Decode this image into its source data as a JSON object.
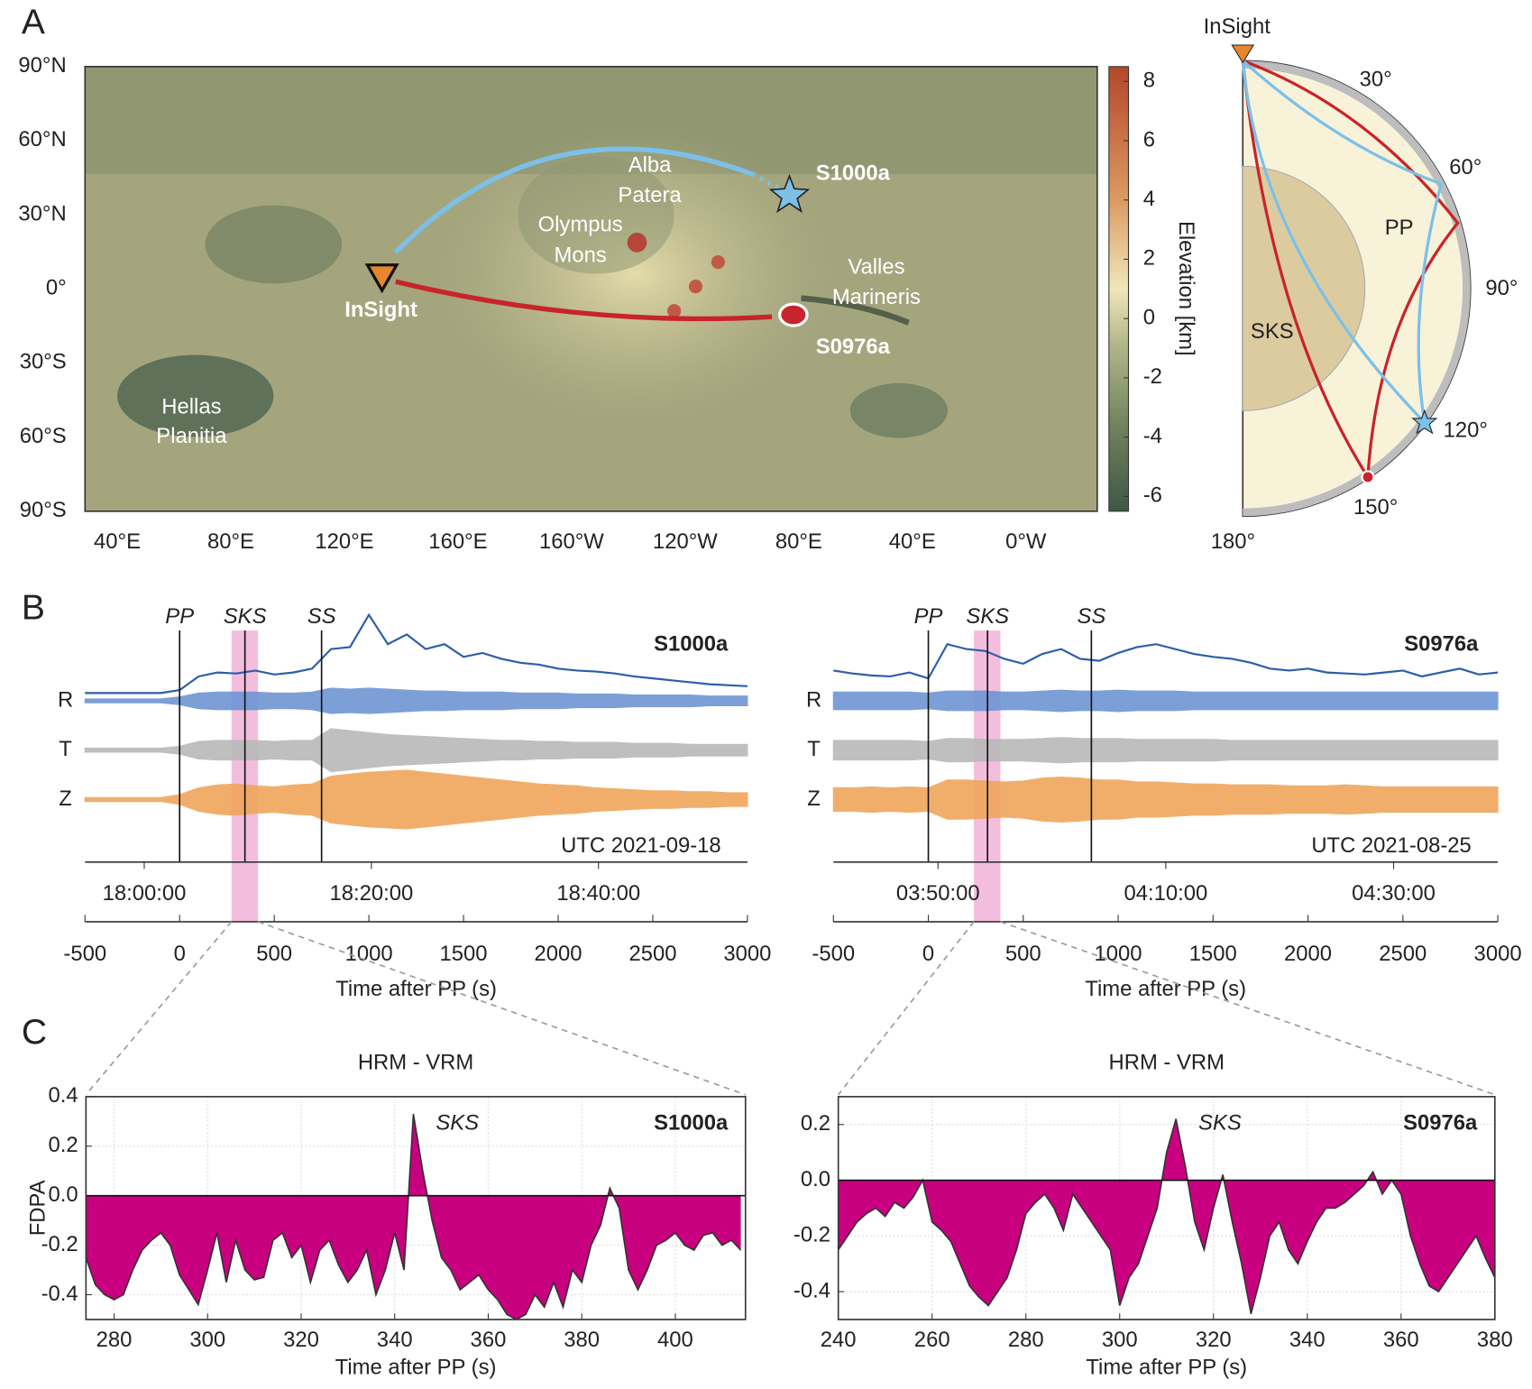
{
  "panel_labels": [
    "A",
    "B",
    "C"
  ],
  "map": {
    "ytick_labels": [
      "90°N",
      "60°N",
      "30°N",
      "0°",
      "30°S",
      "60°S",
      "90°S"
    ],
    "xtick_labels": [
      "40°E",
      "80°E",
      "120°E",
      "160°E",
      "160°W",
      "120°W",
      "80°E",
      "40°E",
      "0°W"
    ],
    "places": [
      [
        "Alba",
        "Patera"
      ],
      [
        "Olympus",
        "Mons"
      ],
      [
        "Valles",
        "Marineris"
      ],
      [
        "Hellas",
        "Planitia"
      ]
    ],
    "station": "InSight",
    "events": [
      "S1000a",
      "S0976a"
    ],
    "colorbar": {
      "label": "Elevation [km]",
      "lim": [
        -6.5,
        8.5
      ],
      "ticks": [
        8,
        6,
        4,
        2,
        0,
        -2,
        -4,
        -6
      ]
    }
  },
  "diagram": {
    "station": "InSight",
    "distance_labels": [
      "30°",
      "60°",
      "90°",
      "120°",
      "150°",
      "180°"
    ],
    "regions": [
      "SKS",
      "PP"
    ]
  },
  "chart_data": [
    {
      "type": "seismogram",
      "event": "S1000a",
      "date_label": "UTC 2021-09-18",
      "xlabel": "Time after PP (s)",
      "xlim": [
        -500,
        3000
      ],
      "xticks": [
        -500,
        0,
        500,
        1000,
        1500,
        2000,
        2500,
        3000
      ],
      "time_ticks": [
        {
          "value": -187,
          "label": "18:00:00"
        },
        {
          "value": 1013,
          "label": "18:20:00"
        },
        {
          "value": 2213,
          "label": "18:40:00"
        }
      ],
      "phases": [
        {
          "name": "PP",
          "value": 0
        },
        {
          "name": "SKS",
          "value": 345
        },
        {
          "name": "SS",
          "value": 750
        }
      ],
      "highlight": [
        274,
        414
      ],
      "x": [
        -500,
        -400,
        -300,
        -200,
        -100,
        0,
        100,
        200,
        300,
        400,
        500,
        600,
        700,
        800,
        900,
        1000,
        1100,
        1200,
        1300,
        1400,
        1500,
        1600,
        1700,
        1800,
        1900,
        2000,
        2100,
        2200,
        2300,
        2400,
        2500,
        2600,
        2700,
        2800,
        2900,
        3000
      ],
      "series": [
        {
          "name": "R",
          "color": "#6f95d3",
          "envelope_color": "#2c5dab",
          "values": [
            0.2,
            0.2,
            0.2,
            0.2,
            0.2,
            0.4,
            0.8,
            0.9,
            0.9,
            0.9,
            0.8,
            0.8,
            0.9,
            1.3,
            1.2,
            1.3,
            1.2,
            1.1,
            1.0,
            1.0,
            0.9,
            0.9,
            0.9,
            0.8,
            0.8,
            0.8,
            0.7,
            0.7,
            0.7,
            0.6,
            0.6,
            0.6,
            0.6,
            0.5,
            0.5,
            0.5
          ],
          "envelope": [
            0.5,
            0.5,
            0.5,
            0.5,
            0.5,
            0.8,
            2.2,
            2.6,
            2.5,
            2.8,
            2.4,
            2.6,
            3.0,
            5.0,
            5.2,
            8.5,
            5.5,
            6.5,
            5.0,
            5.5,
            4.2,
            4.6,
            4.0,
            3.6,
            3.4,
            3.0,
            2.8,
            2.7,
            2.5,
            2.2,
            2.0,
            1.8,
            1.6,
            1.4,
            1.3,
            1.2
          ]
        },
        {
          "name": "T",
          "color": "#b9b9b9",
          "values": [
            0.2,
            0.2,
            0.2,
            0.2,
            0.2,
            0.4,
            0.9,
            1.0,
            1.0,
            1.0,
            0.9,
            1.0,
            1.0,
            2.2,
            2.0,
            1.8,
            1.6,
            1.5,
            1.4,
            1.3,
            1.2,
            1.1,
            1.0,
            1.0,
            0.9,
            0.9,
            0.8,
            0.8,
            0.8,
            0.7,
            0.7,
            0.7,
            0.6,
            0.6,
            0.6,
            0.6
          ]
        },
        {
          "name": "Z",
          "color": "#f0a65c",
          "values": [
            0.2,
            0.2,
            0.2,
            0.2,
            0.2,
            0.5,
            1.2,
            1.5,
            1.6,
            1.4,
            1.3,
            1.5,
            1.6,
            2.4,
            2.6,
            2.8,
            2.9,
            3.0,
            2.8,
            2.6,
            2.4,
            2.2,
            2.0,
            1.8,
            1.6,
            1.5,
            1.4,
            1.2,
            1.1,
            1.0,
            0.9,
            0.9,
            0.8,
            0.8,
            0.7,
            0.7
          ]
        }
      ]
    },
    {
      "type": "seismogram",
      "event": "S0976a",
      "date_label": "UTC 2021-08-25",
      "xlabel": "Time after PP (s)",
      "xlim": [
        -500,
        3000
      ],
      "xticks": [
        -500,
        0,
        500,
        1000,
        1500,
        2000,
        2500,
        3000
      ],
      "time_ticks": [
        {
          "value": 51,
          "label": "03:50:00"
        },
        {
          "value": 1251,
          "label": "04:10:00"
        },
        {
          "value": 2451,
          "label": "04:30:00"
        }
      ],
      "phases": [
        {
          "name": "PP",
          "value": 0
        },
        {
          "name": "SKS",
          "value": 312
        },
        {
          "name": "SS",
          "value": 859
        }
      ],
      "highlight": [
        240,
        380
      ],
      "x": [
        -500,
        -400,
        -300,
        -200,
        -100,
        0,
        100,
        200,
        300,
        400,
        500,
        600,
        700,
        800,
        900,
        1000,
        1100,
        1200,
        1300,
        1400,
        1500,
        1600,
        1700,
        1800,
        1900,
        2000,
        2100,
        2200,
        2300,
        2400,
        2500,
        2600,
        2700,
        2800,
        2900,
        3000
      ],
      "series": [
        {
          "name": "R",
          "color": "#6f95d3",
          "envelope_color": "#2c5dab",
          "values": [
            0.9,
            0.9,
            0.9,
            0.9,
            0.9,
            0.8,
            1.0,
            1.0,
            1.0,
            0.9,
            0.9,
            1.0,
            1.1,
            1.0,
            1.0,
            1.1,
            1.0,
            1.0,
            1.0,
            0.9,
            0.9,
            0.9,
            0.9,
            0.9,
            0.9,
            0.9,
            0.9,
            0.9,
            0.9,
            0.9,
            0.9,
            0.9,
            0.9,
            0.9,
            0.9,
            0.9
          ],
          "envelope": [
            2.8,
            2.5,
            2.3,
            2.2,
            2.6,
            2.0,
            5.5,
            5.0,
            4.8,
            4.0,
            3.5,
            4.5,
            5.0,
            4.0,
            3.8,
            4.6,
            5.2,
            5.5,
            5.0,
            4.5,
            4.2,
            4.0,
            3.6,
            3.0,
            2.8,
            3.0,
            2.6,
            2.5,
            2.4,
            2.6,
            2.8,
            2.2,
            2.6,
            3.0,
            2.4,
            2.6
          ]
        },
        {
          "name": "T",
          "color": "#b9b9b9",
          "values": [
            1.0,
            1.0,
            1.0,
            1.0,
            1.0,
            0.9,
            1.2,
            1.2,
            1.1,
            1.1,
            1.1,
            1.2,
            1.3,
            1.2,
            1.2,
            1.2,
            1.1,
            1.1,
            1.1,
            1.1,
            1.1,
            1.0,
            1.0,
            1.0,
            1.0,
            1.0,
            1.0,
            1.0,
            1.0,
            1.0,
            1.0,
            1.0,
            1.0,
            1.0,
            1.0,
            1.0
          ]
        },
        {
          "name": "Z",
          "color": "#f0a65c",
          "values": [
            1.2,
            1.2,
            1.3,
            1.2,
            1.3,
            1.2,
            2.0,
            2.0,
            1.9,
            1.8,
            1.9,
            2.2,
            2.3,
            2.2,
            2.0,
            2.0,
            1.8,
            1.8,
            1.7,
            1.6,
            1.6,
            1.5,
            1.5,
            1.5,
            1.4,
            1.4,
            1.4,
            1.5,
            1.4,
            1.3,
            1.3,
            1.3,
            1.3,
            1.3,
            1.3,
            1.3
          ]
        }
      ]
    },
    {
      "type": "area",
      "title": "HRM - VRM",
      "event": "S1000a",
      "annotation": "SKS",
      "ylabel": "FDPA",
      "xlabel": "Time after PP (s)",
      "color": "#c8007f",
      "grid": true,
      "xlim": [
        274,
        415
      ],
      "ylim": [
        -0.5,
        0.4
      ],
      "xticks": [
        280,
        300,
        320,
        340,
        360,
        380,
        400
      ],
      "yticks": [
        0.4,
        0.2,
        {
          "value": 0,
          "label": "0.0"
        },
        -0.2,
        -0.4
      ],
      "x": [
        274,
        276,
        278,
        280,
        282,
        284,
        286,
        288,
        290,
        292,
        294,
        296,
        298,
        300,
        302,
        304,
        306,
        308,
        310,
        312,
        314,
        316,
        318,
        320,
        322,
        324,
        326,
        328,
        330,
        332,
        334,
        336,
        338,
        340,
        342,
        344,
        346,
        348,
        350,
        352,
        354,
        356,
        358,
        360,
        362,
        364,
        366,
        368,
        370,
        372,
        374,
        376,
        378,
        380,
        382,
        384,
        386,
        388,
        390,
        392,
        394,
        396,
        398,
        400,
        402,
        404,
        406,
        408,
        410,
        412,
        414
      ],
      "values": [
        -0.25,
        -0.36,
        -0.4,
        -0.42,
        -0.4,
        -0.3,
        -0.22,
        -0.18,
        -0.15,
        -0.2,
        -0.32,
        -0.38,
        -0.44,
        -0.3,
        -0.15,
        -0.35,
        -0.18,
        -0.3,
        -0.34,
        -0.33,
        -0.18,
        -0.15,
        -0.25,
        -0.2,
        -0.35,
        -0.22,
        -0.18,
        -0.28,
        -0.35,
        -0.3,
        -0.22,
        -0.4,
        -0.3,
        -0.15,
        -0.3,
        0.33,
        0.1,
        -0.1,
        -0.25,
        -0.3,
        -0.38,
        -0.35,
        -0.32,
        -0.38,
        -0.42,
        -0.48,
        -0.5,
        -0.48,
        -0.4,
        -0.45,
        -0.35,
        -0.45,
        -0.3,
        -0.35,
        -0.2,
        -0.12,
        0.03,
        -0.05,
        -0.3,
        -0.38,
        -0.3,
        -0.2,
        -0.18,
        -0.15,
        -0.2,
        -0.22,
        -0.16,
        -0.15,
        -0.2,
        -0.18,
        -0.22
      ]
    },
    {
      "type": "area",
      "title": "HRM - VRM",
      "event": "S0976a",
      "annotation": "SKS",
      "xlabel": "Time after PP (s)",
      "color": "#c8007f",
      "grid": true,
      "xlim": [
        240,
        380
      ],
      "ylim": [
        -0.5,
        0.3
      ],
      "xticks": [
        240,
        260,
        280,
        300,
        320,
        340,
        360,
        380
      ],
      "yticks": [
        0.2,
        {
          "value": 0,
          "label": "0.0"
        },
        -0.2,
        -0.4
      ],
      "x": [
        240,
        242,
        244,
        246,
        248,
        250,
        252,
        254,
        256,
        258,
        260,
        262,
        264,
        266,
        268,
        270,
        272,
        274,
        276,
        278,
        280,
        282,
        284,
        286,
        288,
        290,
        292,
        294,
        296,
        298,
        300,
        302,
        304,
        306,
        308,
        310,
        312,
        314,
        316,
        318,
        320,
        322,
        324,
        326,
        328,
        330,
        332,
        334,
        336,
        338,
        340,
        342,
        344,
        346,
        348,
        350,
        352,
        354,
        356,
        358,
        360,
        362,
        364,
        366,
        368,
        370,
        372,
        374,
        376,
        378,
        380
      ],
      "values": [
        -0.25,
        -0.2,
        -0.15,
        -0.12,
        -0.1,
        -0.13,
        -0.08,
        -0.1,
        -0.06,
        0.0,
        -0.15,
        -0.18,
        -0.22,
        -0.3,
        -0.38,
        -0.42,
        -0.45,
        -0.4,
        -0.35,
        -0.25,
        -0.12,
        -0.08,
        -0.05,
        -0.1,
        -0.18,
        -0.05,
        -0.1,
        -0.15,
        -0.2,
        -0.25,
        -0.45,
        -0.35,
        -0.3,
        -0.2,
        -0.1,
        0.1,
        0.22,
        0.05,
        -0.15,
        -0.25,
        -0.1,
        0.02,
        -0.15,
        -0.3,
        -0.48,
        -0.35,
        -0.2,
        -0.15,
        -0.25,
        -0.3,
        -0.22,
        -0.15,
        -0.1,
        -0.1,
        -0.08,
        -0.05,
        -0.02,
        0.03,
        -0.05,
        0.0,
        -0.05,
        -0.2,
        -0.3,
        -0.38,
        -0.4,
        -0.35,
        -0.3,
        -0.25,
        -0.2,
        -0.28,
        -0.35
      ]
    }
  ]
}
